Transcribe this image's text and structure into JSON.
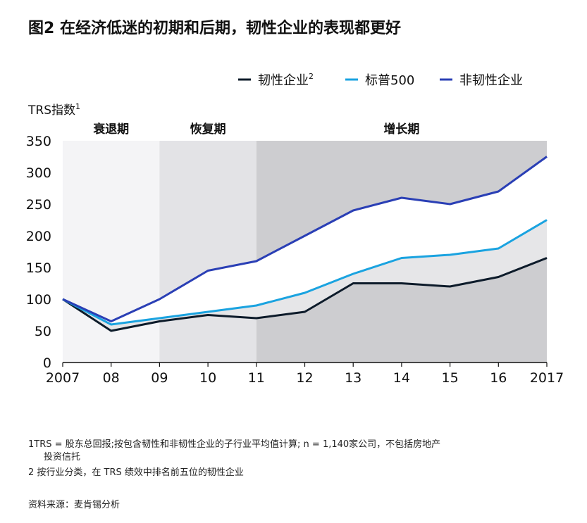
{
  "title": "图2 在经济低迷的初期和后期，韧性企业的表现都更好",
  "chart_data": {
    "type": "line",
    "x": [
      "2007",
      "08",
      "09",
      "10",
      "11",
      "12",
      "13",
      "14",
      "15",
      "16",
      "2017"
    ],
    "ylabel": "TRS指数",
    "ylabel_sup": "1",
    "ylim": [
      0,
      350
    ],
    "yticks": [
      "0",
      "50",
      "100",
      "150",
      "200",
      "250",
      "300",
      "350"
    ],
    "phases": [
      {
        "label": "衰退期",
        "start": 0,
        "end": 2,
        "color": "#f4f4f6"
      },
      {
        "label": "恢复期",
        "start": 2,
        "end": 4,
        "color": "#e3e3e6"
      },
      {
        "label": "增长期",
        "start": 4,
        "end": 10,
        "color": "#cdcdd0"
      }
    ],
    "legend_position": "top-right",
    "series": [
      {
        "name": "韧性企业",
        "sup": "2",
        "color": "#0d1b2a",
        "values": [
          100,
          50,
          65,
          75,
          70,
          80,
          125,
          125,
          120,
          135,
          165
        ]
      },
      {
        "name": "标普500",
        "sup": "",
        "color": "#1aa3e0",
        "values": [
          100,
          60,
          70,
          80,
          90,
          110,
          140,
          165,
          170,
          180,
          225
        ]
      },
      {
        "name": "非韧性企业",
        "sup": "",
        "color": "#2a3fb5",
        "values": [
          100,
          65,
          100,
          145,
          160,
          200,
          240,
          260,
          250,
          270,
          325
        ]
      }
    ]
  },
  "footnotes": {
    "line1": "1TRS = 股东总回报;按包含韧性和非韧性企业的子行业平均值计算; n = 1,140家公司，不包括房地产",
    "line2": "投资信托",
    "line3": "2 按行业分类，在 TRS 绩效中排名前五位的韧性企业",
    "source": "资料来源：麦肯锡分析"
  }
}
